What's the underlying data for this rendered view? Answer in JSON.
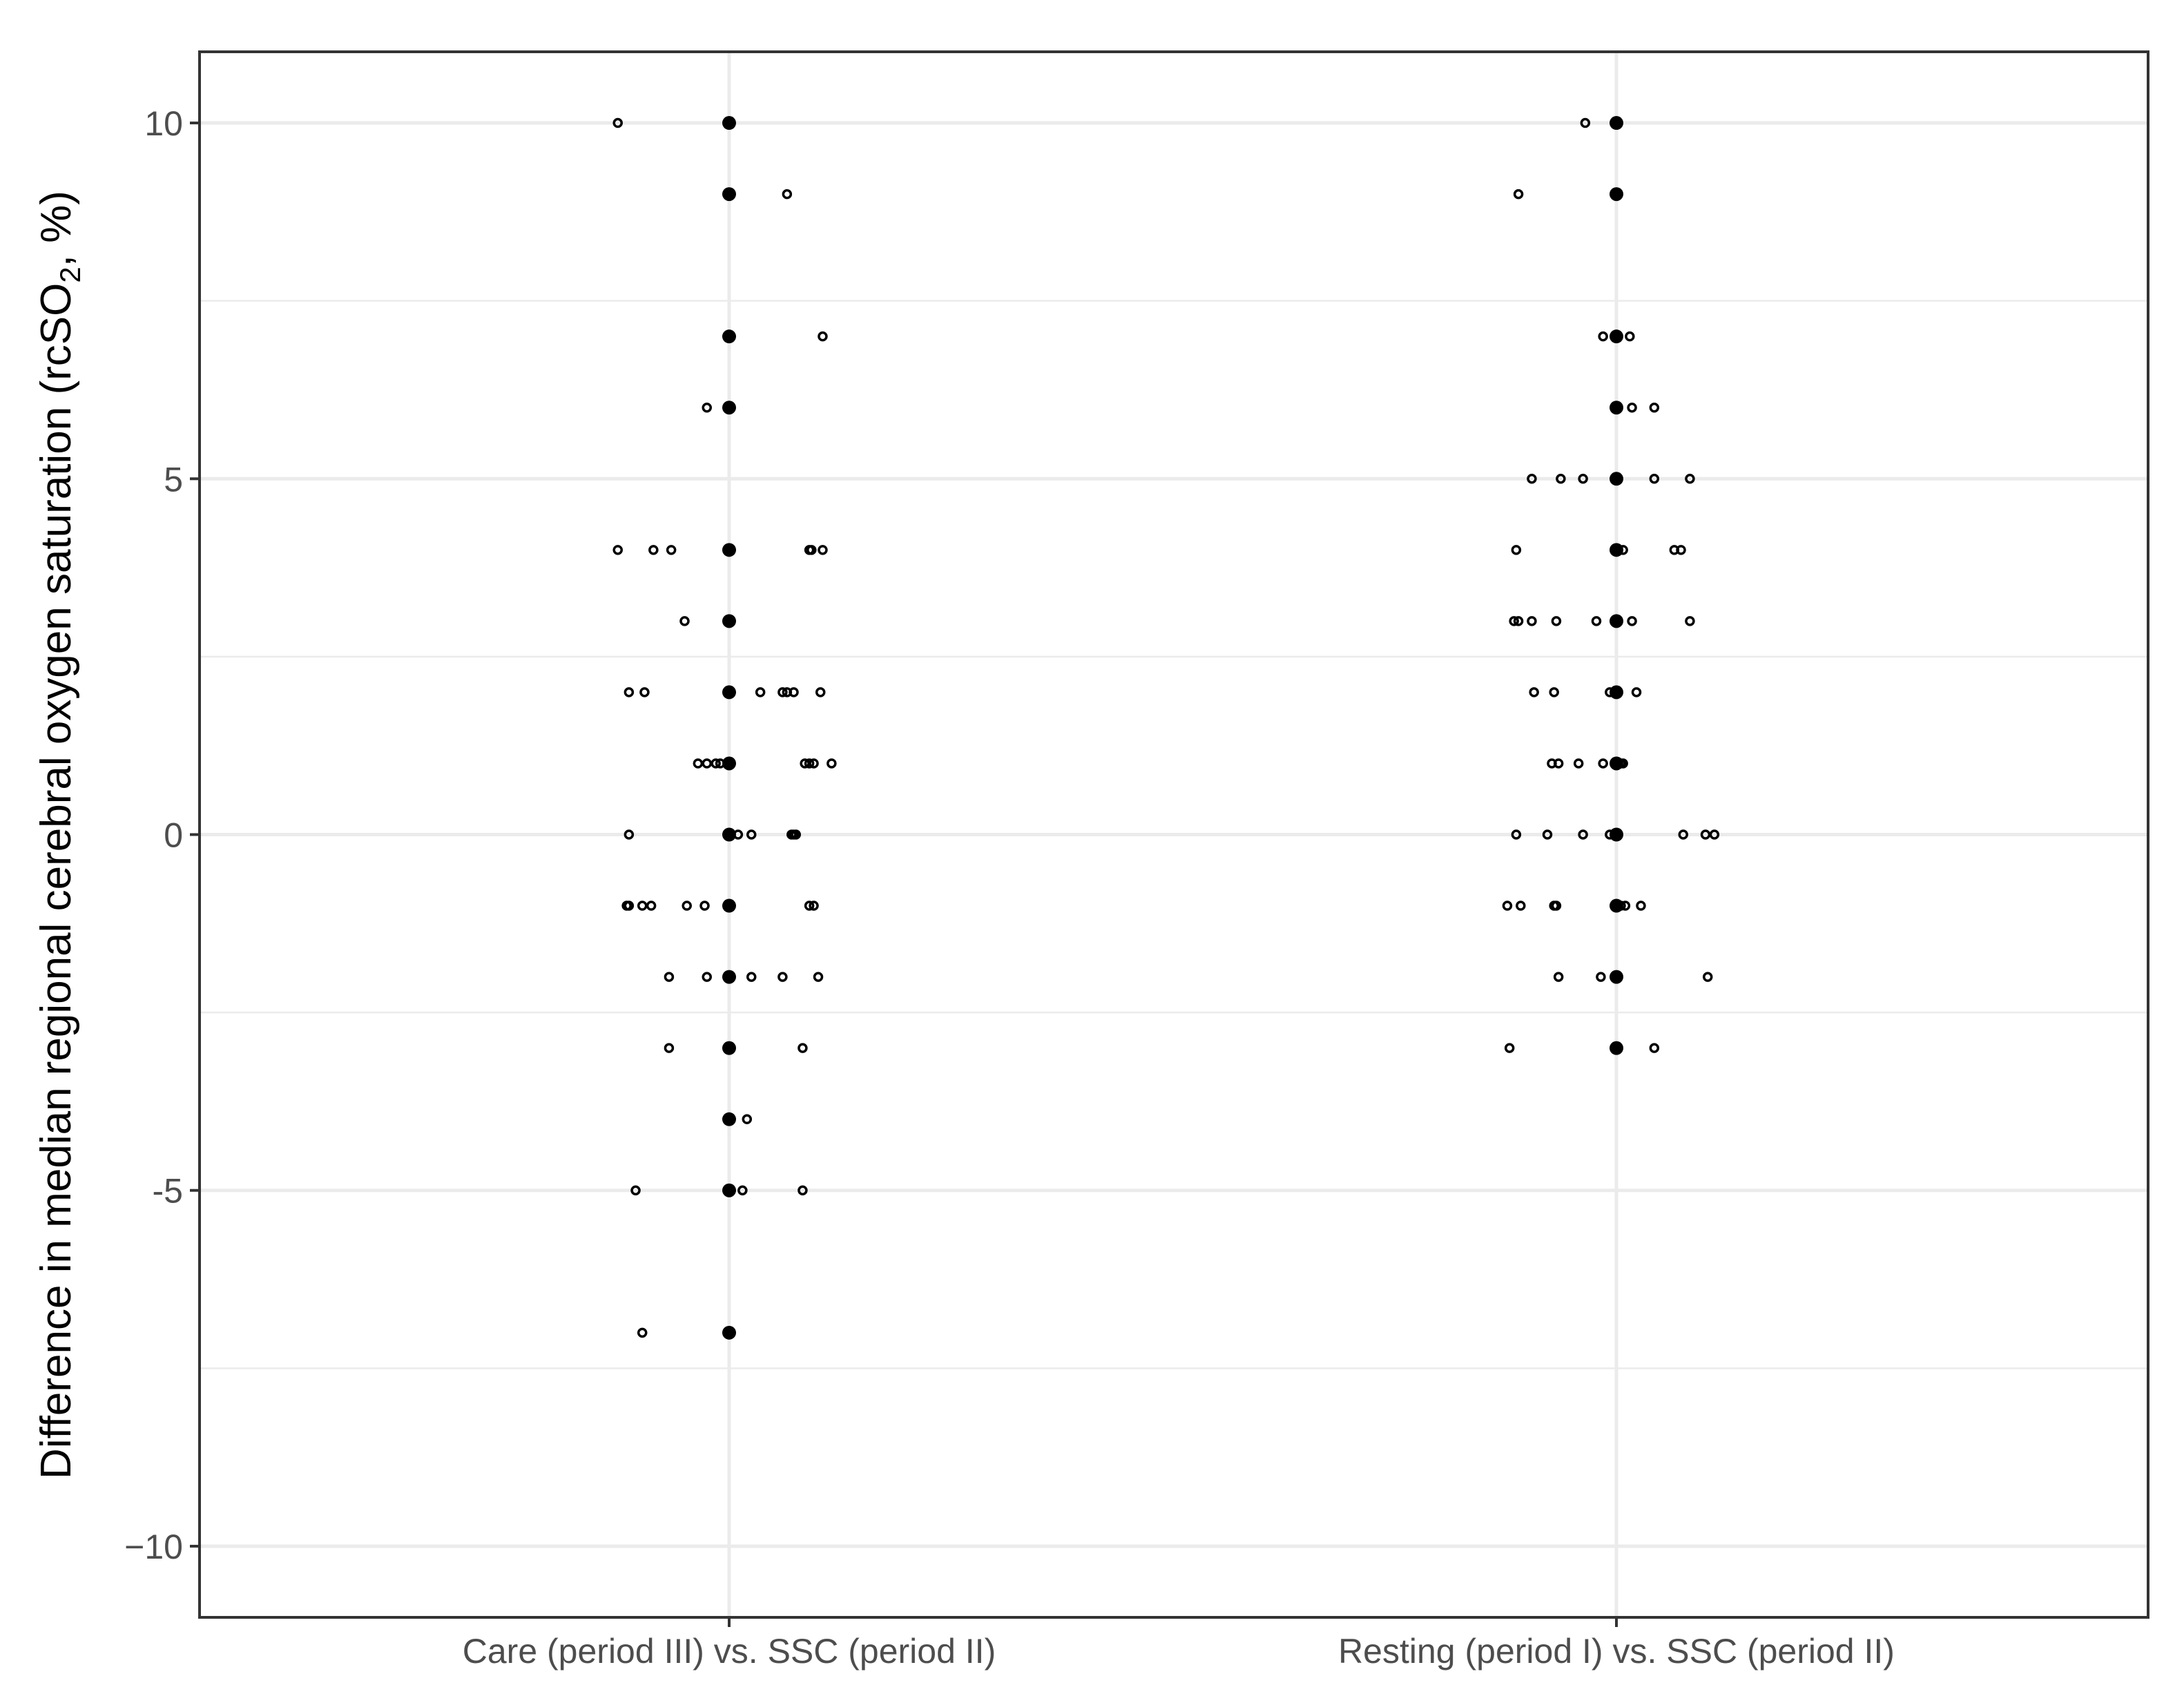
{
  "chart_data": {
    "type": "scatter",
    "title": "",
    "xlabel": "",
    "ylabel": "Difference in median regional cerebral oxygen saturation (rcSO",
    "ylabel_subscript": "2",
    "ylabel_suffix": ", %)",
    "ylim": [
      -11,
      11
    ],
    "y_ticks": [
      -10,
      -5,
      0,
      5,
      10
    ],
    "y_tick_labels": [
      "−10",
      "-5",
      "0",
      "5",
      "10"
    ],
    "grid": true,
    "legend": "none",
    "categories": [
      "Care (period III) vs. SSC (period II)",
      "Resting (period I) vs. SSC (period II)"
    ],
    "series": [
      {
        "category": "Care (period III) vs. SSC (period II)",
        "raw_points": [
          [
            -0.25,
            10
          ],
          [
            0.13,
            9
          ],
          [
            -0.05,
            6
          ],
          [
            0.21,
            7
          ],
          [
            -0.25,
            4
          ],
          [
            -0.17,
            4
          ],
          [
            -0.13,
            4
          ],
          [
            0.18,
            4
          ],
          [
            0.185,
            4
          ],
          [
            0.21,
            4
          ],
          [
            -0.1,
            3
          ],
          [
            -0.225,
            2
          ],
          [
            -0.19,
            2
          ],
          [
            0.07,
            2
          ],
          [
            0.12,
            2
          ],
          [
            0.13,
            2
          ],
          [
            0.145,
            2
          ],
          [
            0.205,
            2
          ],
          [
            -0.07,
            1
          ],
          [
            -0.05,
            1
          ],
          [
            -0.03,
            1
          ],
          [
            -0.02,
            1
          ],
          [
            0.17,
            1
          ],
          [
            0.18,
            1
          ],
          [
            0.19,
            1
          ],
          [
            0.23,
            1
          ],
          [
            -0.225,
            0
          ],
          [
            0.02,
            0
          ],
          [
            0.05,
            0
          ],
          [
            0.14,
            0
          ],
          [
            0.145,
            0
          ],
          [
            0.15,
            0
          ],
          [
            -0.23,
            -1
          ],
          [
            -0.225,
            -1
          ],
          [
            -0.195,
            -1
          ],
          [
            -0.175,
            -1
          ],
          [
            -0.095,
            -1
          ],
          [
            -0.055,
            -1
          ],
          [
            0.18,
            -1
          ],
          [
            0.19,
            -1
          ],
          [
            -0.135,
            -2
          ],
          [
            -0.05,
            -2
          ],
          [
            0.05,
            -2
          ],
          [
            0.12,
            -2
          ],
          [
            0.2,
            -2
          ],
          [
            -0.135,
            -3
          ],
          [
            0.165,
            -3
          ],
          [
            0.04,
            -4
          ],
          [
            -0.21,
            -5
          ],
          [
            0.03,
            -5
          ],
          [
            0.165,
            -5
          ],
          [
            -0.195,
            -7
          ]
        ],
        "median_points": [
          10,
          9,
          7,
          6,
          4,
          3,
          2,
          1,
          0,
          -1,
          -2,
          -3,
          -4,
          -5,
          -7
        ]
      },
      {
        "category": "Resting (period I) vs. SSC (period II)",
        "raw_points": [
          [
            -0.07,
            10
          ],
          [
            -0.22,
            9
          ],
          [
            -0.03,
            7
          ],
          [
            0.03,
            7
          ],
          [
            0.035,
            6
          ],
          [
            0.085,
            6
          ],
          [
            -0.19,
            5
          ],
          [
            -0.125,
            5
          ],
          [
            -0.075,
            5
          ],
          [
            0.085,
            5
          ],
          [
            0.165,
            5
          ],
          [
            -0.225,
            4
          ],
          [
            0.015,
            4
          ],
          [
            0.13,
            4
          ],
          [
            0.145,
            4
          ],
          [
            -0.23,
            3
          ],
          [
            -0.22,
            3
          ],
          [
            -0.19,
            3
          ],
          [
            -0.135,
            3
          ],
          [
            -0.045,
            3
          ],
          [
            0.035,
            3
          ],
          [
            0.165,
            3
          ],
          [
            -0.185,
            2
          ],
          [
            -0.14,
            2
          ],
          [
            -0.015,
            2
          ],
          [
            0.045,
            2
          ],
          [
            -0.145,
            1
          ],
          [
            -0.13,
            1
          ],
          [
            -0.085,
            1
          ],
          [
            -0.03,
            1
          ],
          [
            0.01,
            1
          ],
          [
            0.015,
            1
          ],
          [
            -0.225,
            0
          ],
          [
            -0.155,
            0
          ],
          [
            -0.075,
            0
          ],
          [
            -0.015,
            0
          ],
          [
            0.15,
            0
          ],
          [
            0.2,
            0
          ],
          [
            0.22,
            0
          ],
          [
            -0.245,
            -1
          ],
          [
            -0.215,
            -1
          ],
          [
            -0.14,
            -1
          ],
          [
            -0.135,
            -1
          ],
          [
            0.01,
            -1
          ],
          [
            0.02,
            -1
          ],
          [
            0.055,
            -1
          ],
          [
            -0.13,
            -2
          ],
          [
            -0.035,
            -2
          ],
          [
            0.205,
            -2
          ],
          [
            -0.24,
            -3
          ],
          [
            0.085,
            -3
          ]
        ],
        "median_points": [
          10,
          9,
          7,
          6,
          5,
          4,
          3,
          2,
          1,
          0,
          -1,
          -2,
          -3
        ]
      }
    ]
  }
}
